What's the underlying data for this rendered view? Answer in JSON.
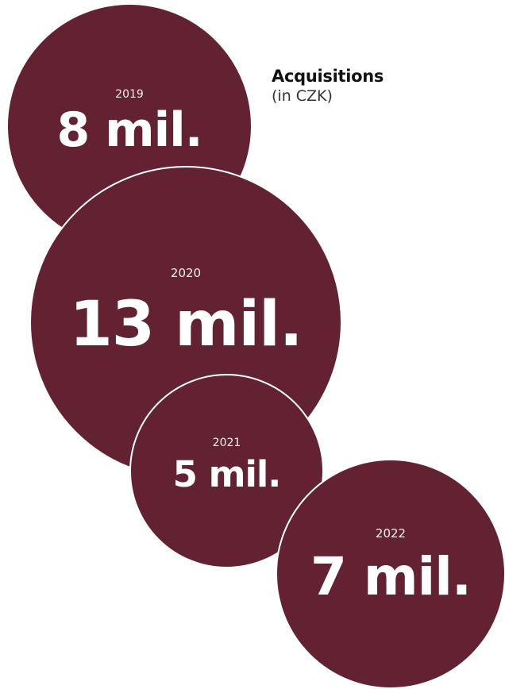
{
  "legend": {
    "title": "Acquisitions",
    "subtitle": "(in CZK)"
  },
  "colors": {
    "bubble_fill": "#632232",
    "bubble_outline": "#ffffff",
    "label_text": "#ffffff",
    "legend_text": "#111111"
  },
  "chart_data": {
    "type": "bubble",
    "title": "Acquisitions",
    "subtitle": "(in CZK)",
    "unit": "mil. CZK",
    "categories": [
      "2019",
      "2020",
      "2021",
      "2022"
    ],
    "values": [
      8,
      13,
      5,
      7
    ],
    "labels": [
      "8 mil.",
      "13 mil.",
      "5 mil.",
      "7 mil."
    ]
  }
}
